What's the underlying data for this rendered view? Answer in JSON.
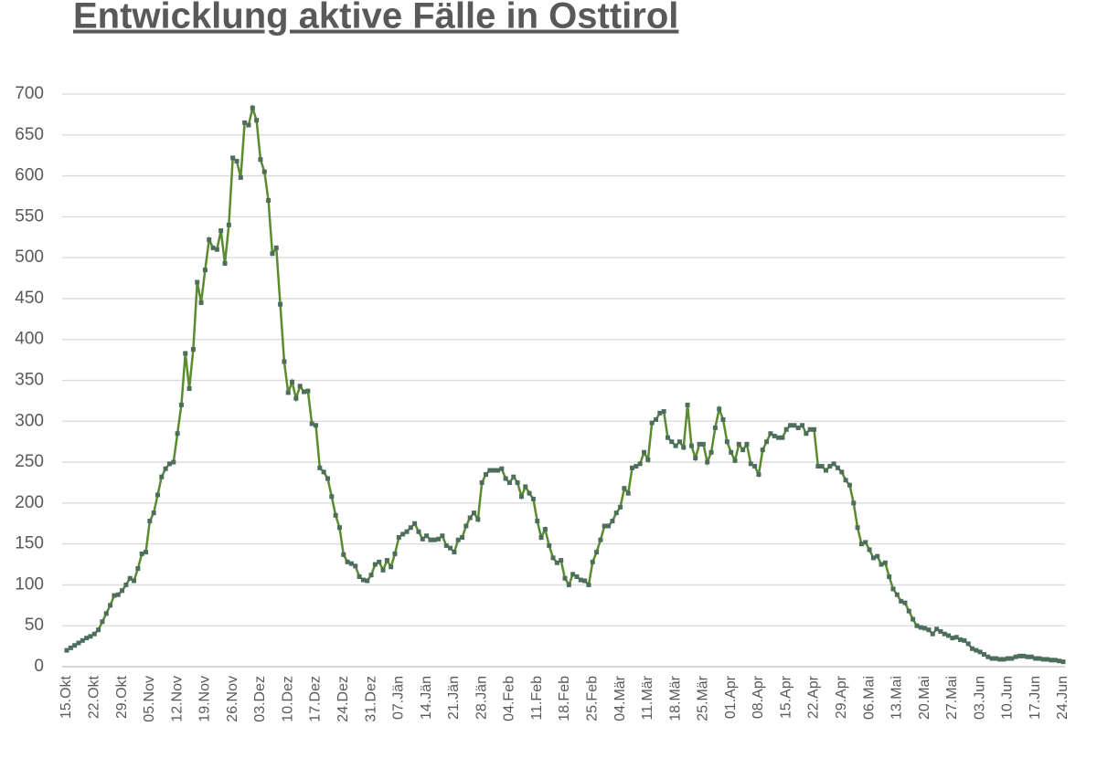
{
  "chart_data": {
    "type": "line",
    "title": "Entwicklung aktive Fälle in Osttirol",
    "categories": [
      "15.Okt",
      null,
      null,
      null,
      null,
      null,
      null,
      "22.Okt",
      null,
      null,
      null,
      null,
      null,
      null,
      "29.Okt",
      null,
      null,
      null,
      null,
      null,
      null,
      "05.Nov",
      null,
      null,
      null,
      null,
      null,
      null,
      "12.Nov",
      null,
      null,
      null,
      null,
      null,
      null,
      "19.Nov",
      null,
      null,
      null,
      null,
      null,
      null,
      "26.Nov",
      null,
      null,
      null,
      null,
      null,
      null,
      "03.Dez",
      null,
      null,
      null,
      null,
      null,
      null,
      "10.Dez",
      null,
      null,
      null,
      null,
      null,
      null,
      "17.Dez",
      null,
      null,
      null,
      null,
      null,
      null,
      "24.Dez",
      null,
      null,
      null,
      null,
      null,
      null,
      "31.Dez",
      null,
      null,
      null,
      null,
      null,
      null,
      "07.Jän",
      null,
      null,
      null,
      null,
      null,
      null,
      "14.Jän",
      null,
      null,
      null,
      null,
      null,
      null,
      "21.Jän",
      null,
      null,
      null,
      null,
      null,
      null,
      "28.Jän",
      null,
      null,
      null,
      null,
      null,
      null,
      "04.Feb",
      null,
      null,
      null,
      null,
      null,
      null,
      "11.Feb",
      null,
      null,
      null,
      null,
      null,
      null,
      "18.Feb",
      null,
      null,
      null,
      null,
      null,
      null,
      "25.Feb",
      null,
      null,
      null,
      null,
      null,
      null,
      "04.Mär",
      null,
      null,
      null,
      null,
      null,
      null,
      "11.Mär",
      null,
      null,
      null,
      null,
      null,
      null,
      "18.Mär",
      null,
      null,
      null,
      null,
      null,
      null,
      "25.Mär",
      null,
      null,
      null,
      null,
      null,
      null,
      "01.Apr",
      null,
      null,
      null,
      null,
      null,
      null,
      "08.Apr",
      null,
      null,
      null,
      null,
      null,
      null,
      "15.Apr",
      null,
      null,
      null,
      null,
      null,
      null,
      "22.Apr",
      null,
      null,
      null,
      null,
      null,
      null,
      "29.Apr",
      null,
      null,
      null,
      null,
      null,
      null,
      "06.Mai",
      null,
      null,
      null,
      null,
      null,
      null,
      "13.Mai",
      null,
      null,
      null,
      null,
      null,
      null,
      "20.Mai",
      null,
      null,
      null,
      null,
      null,
      null,
      "27.Mai",
      null,
      null,
      null,
      null,
      null,
      null,
      "03.Jun",
      null,
      null,
      null,
      null,
      null,
      null,
      "10.Jun",
      null,
      null,
      null,
      null,
      null,
      null,
      "17.Jun",
      null,
      null,
      null,
      null,
      null,
      null,
      "24.Jun"
    ],
    "values": [
      20,
      23,
      26,
      29,
      32,
      35,
      37,
      40,
      45,
      55,
      65,
      75,
      87,
      88,
      93,
      100,
      108,
      105,
      120,
      138,
      140,
      178,
      188,
      210,
      232,
      242,
      248,
      250,
      285,
      320,
      383,
      340,
      388,
      470,
      445,
      485,
      522,
      512,
      510,
      533,
      493,
      540,
      622,
      618,
      598,
      665,
      662,
      683,
      668,
      620,
      605,
      570,
      505,
      512,
      443,
      373,
      335,
      348,
      328,
      343,
      336,
      337,
      297,
      295,
      243,
      238,
      230,
      208,
      185,
      170,
      137,
      128,
      126,
      123,
      110,
      106,
      105,
      112,
      125,
      128,
      118,
      130,
      122,
      138,
      158,
      162,
      165,
      170,
      175,
      165,
      156,
      160,
      155,
      155,
      156,
      160,
      148,
      145,
      140,
      155,
      158,
      172,
      182,
      188,
      180,
      225,
      235,
      240,
      240,
      240,
      242,
      230,
      225,
      232,
      225,
      208,
      220,
      212,
      205,
      178,
      158,
      168,
      148,
      133,
      127,
      130,
      108,
      100,
      113,
      110,
      106,
      105,
      100,
      128,
      140,
      155,
      172,
      172,
      178,
      188,
      195,
      218,
      212,
      243,
      245,
      248,
      262,
      253,
      298,
      302,
      310,
      312,
      280,
      275,
      270,
      275,
      268,
      320,
      270,
      255,
      272,
      272,
      250,
      262,
      292,
      315,
      302,
      275,
      262,
      252,
      272,
      265,
      272,
      248,
      245,
      235,
      265,
      275,
      285,
      282,
      280,
      280,
      290,
      295,
      295,
      292,
      295,
      285,
      290,
      290,
      245,
      245,
      240,
      245,
      248,
      243,
      238,
      228,
      222,
      200,
      170,
      150,
      152,
      143,
      133,
      135,
      125,
      127,
      110,
      95,
      88,
      80,
      78,
      68,
      58,
      50,
      48,
      47,
      45,
      40,
      46,
      43,
      40,
      38,
      35,
      36,
      33,
      32,
      28,
      22,
      20,
      18,
      15,
      12,
      10,
      10,
      9,
      9,
      10,
      10,
      12,
      13,
      13,
      12,
      12,
      10,
      10,
      9,
      9,
      8,
      8,
      7,
      6
    ],
    "color": "#5b8b2f",
    "marker_color": "#4d6e5c",
    "ylim": [
      0,
      700
    ],
    "yticks": [
      0,
      50,
      100,
      150,
      200,
      250,
      300,
      350,
      400,
      450,
      500,
      550,
      600,
      650,
      700
    ],
    "grid": true
  }
}
